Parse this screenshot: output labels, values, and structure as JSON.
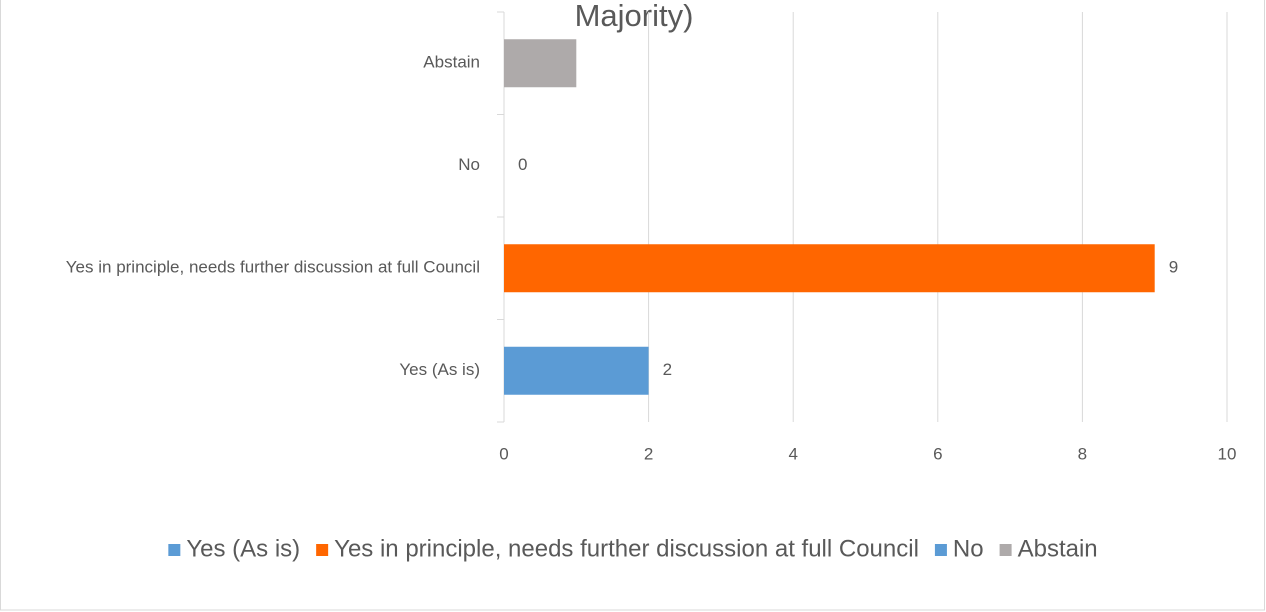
{
  "chart_data": {
    "type": "bar",
    "orientation": "horizontal",
    "title": "Majority)",
    "categories": [
      "Yes (As is)",
      "Yes in principle, needs further discussion at full Council",
      "No",
      "Abstain"
    ],
    "values": [
      2,
      9,
      0,
      1
    ],
    "value_labels": [
      "2",
      "9",
      "0",
      null
    ],
    "colors": [
      "#5b9bd5",
      "#ff6600",
      "#5b9bd5",
      "#aeaaaa"
    ],
    "xlim": [
      0,
      10
    ],
    "xticks": [
      0,
      2,
      4,
      6,
      8,
      10
    ],
    "grid": true,
    "legend": "bottom"
  }
}
